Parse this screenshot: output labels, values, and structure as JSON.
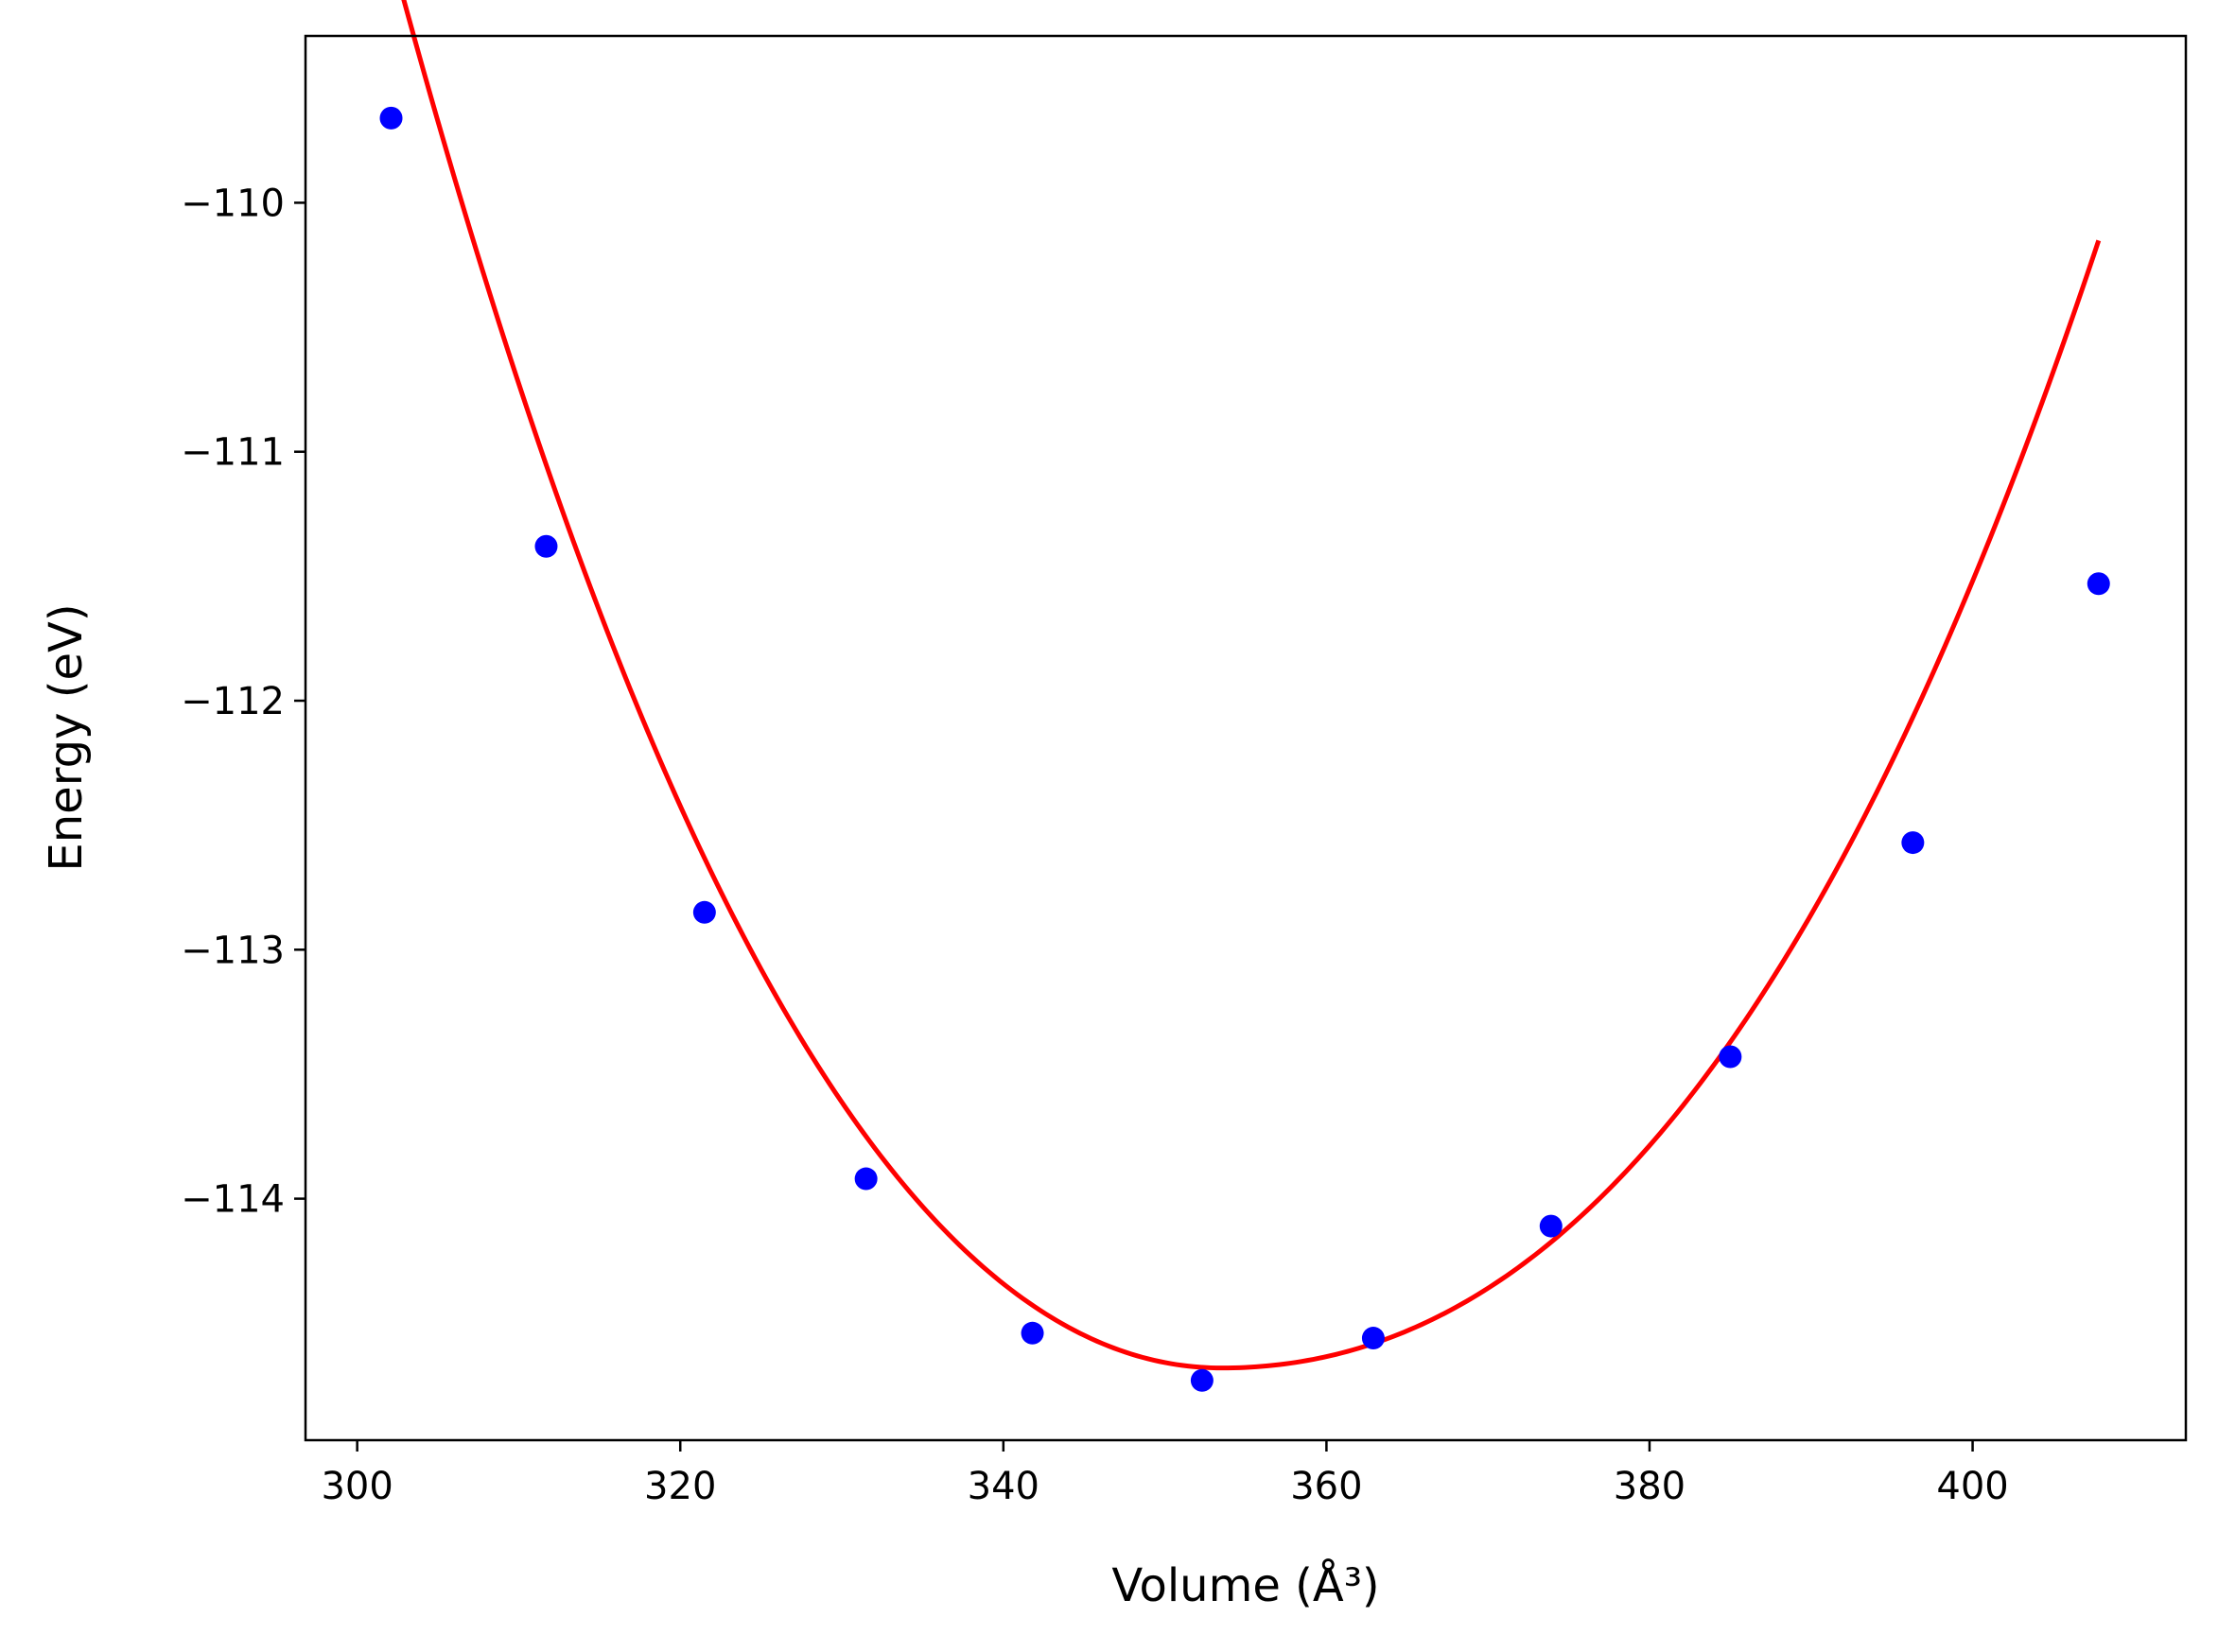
{
  "chart_data": {
    "type": "scatter",
    "title": "",
    "xlabel": "Volume (Å³)",
    "ylabel": "Energy (eV)",
    "xlim": [
      296.8,
      413.2
    ],
    "ylim": [
      -114.97,
      -109.33
    ],
    "x_ticks": [
      300,
      320,
      340,
      360,
      380,
      400
    ],
    "y_ticks": [
      -110,
      -111,
      -112,
      -113,
      -114
    ],
    "x_tick_labels": [
      "300",
      "320",
      "340",
      "360",
      "380",
      "400"
    ],
    "y_tick_labels": [
      "−110",
      "−111",
      "−112",
      "−113",
      "−114"
    ],
    "grid": false,
    "legend": "none",
    "series": [
      {
        "kind": "scatter",
        "color": "#0000ff",
        "x": [
          302.1,
          311.7,
          321.5,
          331.5,
          341.8,
          352.3,
          362.9,
          373.9,
          385.0,
          396.3,
          407.8
        ],
        "y": [
          -109.66,
          -111.38,
          -112.85,
          -113.92,
          -114.54,
          -114.73,
          -114.56,
          -114.11,
          -113.43,
          -112.57,
          -111.53
        ]
      },
      {
        "kind": "line",
        "color": "#ff0000",
        "fit": {
          "E0": -114.68,
          "V0": 353.5,
          "a_left": 0.00175,
          "b_left": -7.8e-06,
          "a_right": 0.00102,
          "b_right": 9.5e-06,
          "x_start": 302.1,
          "x_end": 407.8
        }
      }
    ]
  }
}
